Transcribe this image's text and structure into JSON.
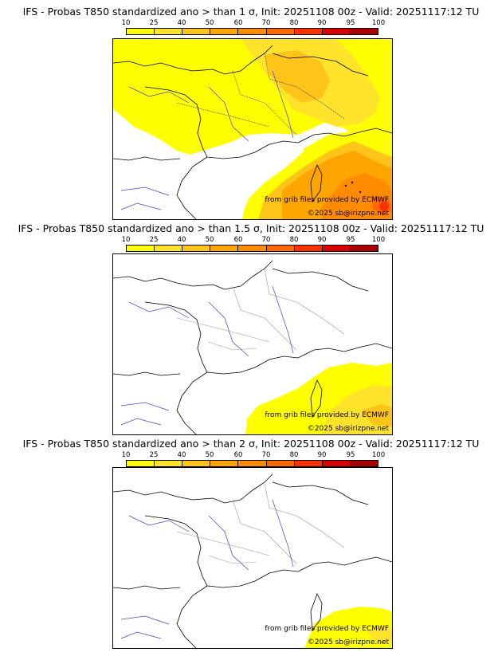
{
  "legend": {
    "labels": [
      "10",
      "25",
      "40",
      "50",
      "60",
      "70",
      "80",
      "90",
      "95",
      "100"
    ],
    "colors": [
      "#ffff00",
      "#ffe22a",
      "#ffc41a",
      "#ffa500",
      "#ff8c00",
      "#ff6a00",
      "#ff3000",
      "#d90000",
      "#a80000",
      "#5a0000"
    ]
  },
  "panels": [
    {
      "title": "IFS - Probas T850  standardized ano > than 1 σ, Init: 20251108 00z - Valid: 20251117:12 TU",
      "credit_source": "from grib files provided by ECMWF",
      "credit_copyright": "©2025 sb@irizpne.net"
    },
    {
      "title": "IFS - Probas T850  standardized ano > than 1.5 σ, Init: 20251108 00z - Valid: 20251117:12 TU",
      "credit_source": "from grib files provided by ECMWF",
      "credit_copyright": "©2025 sb@irizpne.net"
    },
    {
      "title": "IFS - Probas T850  standardized ano > than 2 σ, Init: 20251108 00z - Valid: 20251117:12 TU",
      "credit_source": "from grib files provided by ECMWF",
      "credit_copyright": "©2025 sb@irizpne.net"
    }
  ]
}
